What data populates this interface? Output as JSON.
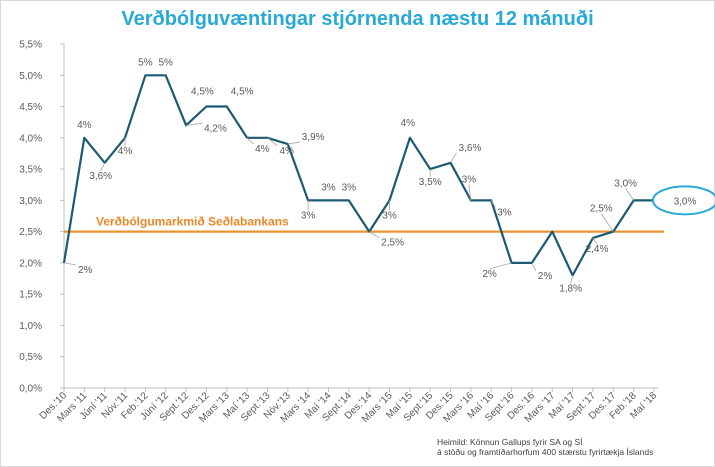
{
  "chart_data": {
    "type": "line",
    "title": "Verðbólguvæntingar stjórnenda næstu 12 mánuði",
    "ylim": [
      0,
      5.5
    ],
    "yticks": [
      "0,0%",
      "0,5%",
      "1,0%",
      "1,5%",
      "2,0%",
      "2,5%",
      "3,0%",
      "3,5%",
      "4,0%",
      "4,5%",
      "5,0%",
      "5,5%"
    ],
    "categories": [
      "Des.'10",
      "Mars '11",
      "Júní '11",
      "Nóv.'11",
      "Feb.'12",
      "Júní '12",
      "Sept.'12",
      "Des.'12",
      "Mars '13",
      "Maí '13",
      "Sept.'13",
      "Nóv.'13",
      "Mars '14",
      "Maí '14",
      "Sept.'14",
      "Des.'14",
      "Mars '15",
      "Maí '15",
      "Sept.'15",
      "Des.'15",
      "Mars '16",
      "Maí '16",
      "Sept.'16",
      "Des.'16",
      "Mars '17",
      "Maí '17",
      "Sept.'17",
      "Des.'17",
      "Feb.'18",
      "Maí '18"
    ],
    "series": [
      {
        "name": "",
        "color": "#1c5a73",
        "values": [
          2.0,
          4.0,
          3.6,
          4.0,
          5.0,
          5.0,
          4.2,
          4.5,
          4.5,
          4.0,
          4.0,
          3.9,
          3.0,
          3.0,
          3.0,
          2.5,
          3.0,
          4.0,
          3.5,
          3.6,
          3.0,
          3.0,
          2.0,
          2.0,
          2.5,
          1.8,
          2.4,
          2.5,
          3.0,
          3.0
        ],
        "labels": [
          "2%",
          "4%",
          "3,6%",
          "4%",
          "5%",
          "5%",
          "4,2%",
          "4,5%",
          "4,5%",
          "4%",
          "4%",
          "3,9%",
          "3%",
          "3%",
          "3%",
          "2,5%",
          "3%",
          "4%",
          "3,5%",
          "3,6%",
          "3%",
          "3%",
          "2%",
          "2%",
          "",
          "1,8%",
          "2,4%",
          "2,5%",
          "3,0%",
          "3,0%"
        ]
      }
    ],
    "reference_line": {
      "value": 2.5,
      "label": "Verðbólgumarkmið Seðlabankans",
      "color": "#e8952f"
    },
    "highlight": {
      "index": 29,
      "color": "#29a9d6"
    },
    "grid": false,
    "legend": "none"
  },
  "source": {
    "line1": "Heimild: Könnun Gallups fyrir SA og SÍ",
    "line2": "á stöðu og framtíðarhorfum 400 stærstu fyrirtækja Íslands"
  }
}
